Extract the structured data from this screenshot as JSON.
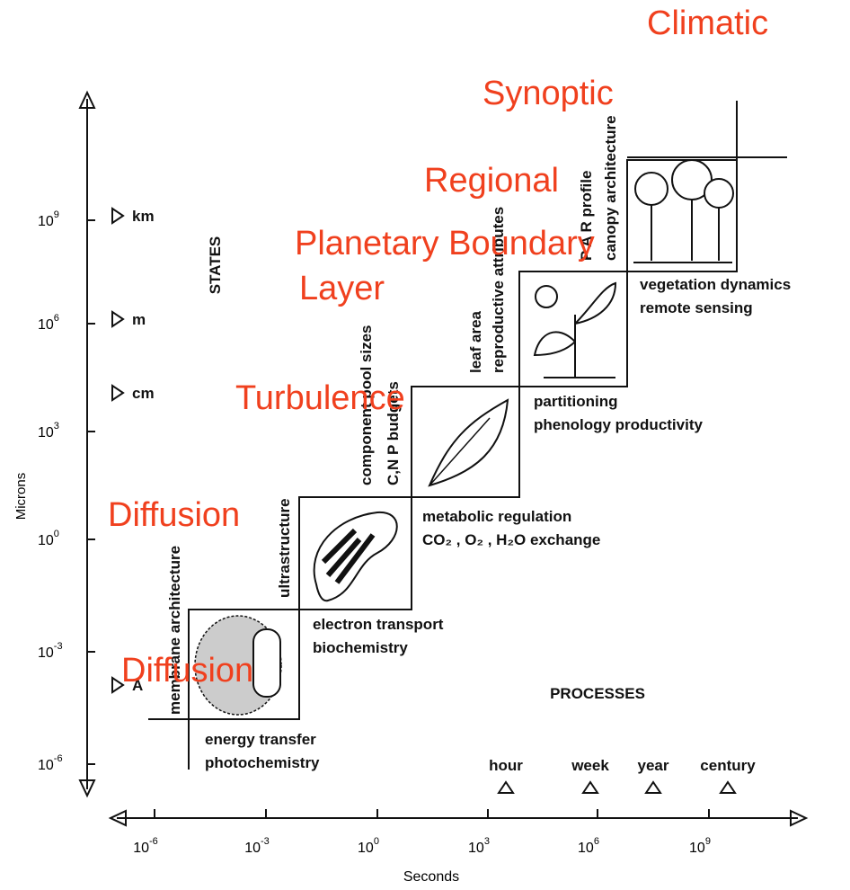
{
  "overlay_labels": [
    "Climatic",
    "Synoptic",
    "Regional",
    "Planetary Boundary",
    "Layer",
    "Turbulence",
    "Diffusion",
    "Diffusion"
  ],
  "y_axis": {
    "title": "Microns",
    "ticks": [
      {
        "base": "10",
        "exp": "9"
      },
      {
        "base": "10",
        "exp": "6"
      },
      {
        "base": "10",
        "exp": "3"
      },
      {
        "base": "10",
        "exp": "0"
      },
      {
        "base": "10",
        "exp": "-3"
      },
      {
        "base": "10",
        "exp": "-6"
      }
    ]
  },
  "x_axis": {
    "title": "Seconds",
    "ticks": [
      {
        "base": "10",
        "exp": "-6"
      },
      {
        "base": "10",
        "exp": "-3"
      },
      {
        "base": "10",
        "exp": "0"
      },
      {
        "base": "10",
        "exp": "3"
      },
      {
        "base": "10",
        "exp": "6"
      },
      {
        "base": "10",
        "exp": "9"
      }
    ]
  },
  "size_markers": [
    "km",
    "m",
    "cm",
    "A"
  ],
  "time_markers": [
    "hour",
    "week",
    "year",
    "century"
  ],
  "sections": {
    "states": "STATES",
    "processes": "PROCESSES"
  },
  "state_labels": [
    [
      "membrane architecture"
    ],
    [
      "ultrastructure"
    ],
    [
      "component pool sizes",
      "C,N P budgets"
    ],
    [
      "leaf area",
      "reproductive attributes"
    ],
    [
      "P A R profile",
      "canopy architecture"
    ]
  ],
  "process_labels": [
    [
      "energy transfer",
      "photochemistry"
    ],
    [
      "electron transport",
      "biochemistry"
    ],
    [
      "metabolic regulation",
      "CO₂ , O₂ , H₂O exchange"
    ],
    [
      "partitioning",
      "phenology productivity"
    ],
    [
      "vegetation dynamics",
      "remote sensing"
    ]
  ]
}
